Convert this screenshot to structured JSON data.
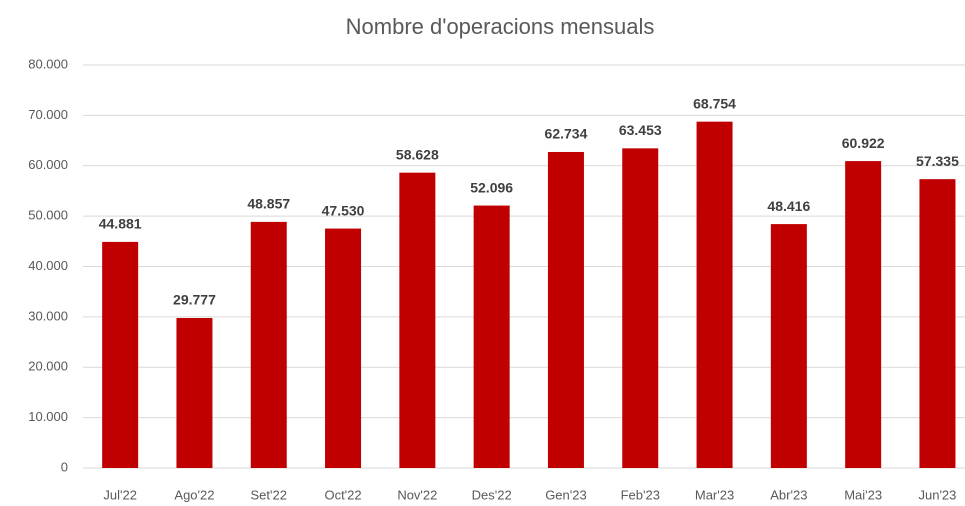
{
  "chart_data": {
    "type": "bar",
    "title": "Nombre d'operacions mensuals",
    "categories": [
      "Jul'22",
      "Ago'22",
      "Set'22",
      "Oct'22",
      "Nov'22",
      "Des'22",
      "Gen'23",
      "Feb'23",
      "Mar'23",
      "Abr'23",
      "Mai'23",
      "Jun'23"
    ],
    "values": [
      44881,
      29777,
      48857,
      47530,
      58628,
      52096,
      62734,
      63453,
      68754,
      48416,
      60922,
      57335
    ],
    "value_labels": [
      "44.881",
      "29.777",
      "48.857",
      "47.530",
      "58.628",
      "52.096",
      "62.734",
      "63.453",
      "68.754",
      "48.416",
      "60.922",
      "57.335"
    ],
    "color": "#c00000",
    "ylim": [
      0,
      80000
    ],
    "yticks": [
      0,
      {
        "value": 10000,
        "label": "10.000"
      },
      {
        "value": 20000,
        "label": "20.000"
      },
      {
        "value": 30000,
        "label": "30.000"
      },
      {
        "value": 40000,
        "label": "40.000"
      },
      {
        "value": 50000,
        "label": "50.000"
      },
      {
        "value": 60000,
        "label": "60.000"
      },
      {
        "value": 70000,
        "label": "70.000"
      },
      {
        "value": 80000,
        "label": "80.000"
      }
    ],
    "grid": true
  }
}
